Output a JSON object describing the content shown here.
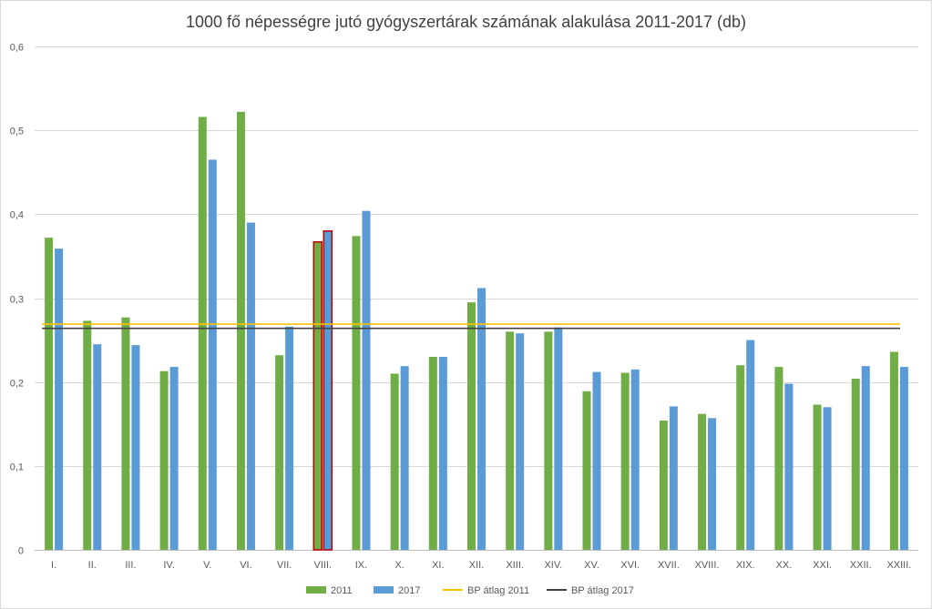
{
  "chart_data": {
    "type": "bar",
    "title": "1000 fő népességre jutó gyógyszertárak számának alakulása 2011-2017 (db)",
    "xlabel": "",
    "ylabel": "",
    "ylim": [
      0,
      0.6
    ],
    "yticks": [
      "0",
      "0,1",
      "0,2",
      "0,3",
      "0,4",
      "0,5",
      "0,6"
    ],
    "grid": true,
    "legend_position": "bottom",
    "categories": [
      "I.",
      "II.",
      "III.",
      "IV.",
      "V.",
      "VI.",
      "VII.",
      "VIII.",
      "IX.",
      "X.",
      "XI.",
      "XII.",
      "XIII.",
      "XIV.",
      "XV.",
      "XVI.",
      "XVII.",
      "XVIII.",
      "XIX.",
      "XX.",
      "XXI.",
      "XXII.",
      "XXIII."
    ],
    "series": [
      {
        "name": "2011",
        "color": "#70ad47",
        "values": [
          0.372,
          0.273,
          0.277,
          0.213,
          0.516,
          0.522,
          0.232,
          0.367,
          0.374,
          0.21,
          0.23,
          0.295,
          0.26,
          0.26,
          0.189,
          0.211,
          0.154,
          0.162,
          0.22,
          0.218,
          0.173,
          0.204,
          0.236
        ]
      },
      {
        "name": "2017",
        "color": "#5b9bd5",
        "values": [
          0.359,
          0.245,
          0.244,
          0.218,
          0.465,
          0.39,
          0.266,
          0.38,
          0.404,
          0.219,
          0.23,
          0.312,
          0.258,
          0.265,
          0.212,
          0.215,
          0.171,
          0.157,
          0.25,
          0.198,
          0.17,
          0.219,
          0.218
        ]
      }
    ],
    "reference_lines": [
      {
        "name": "BP átlag 2011",
        "color": "#ffc000",
        "value": 0.269
      },
      {
        "name": "BP átlag 2017",
        "color": "#404040",
        "value": 0.264
      }
    ],
    "highlight": {
      "category": "VIII.",
      "outline_color": "#c00000"
    }
  }
}
